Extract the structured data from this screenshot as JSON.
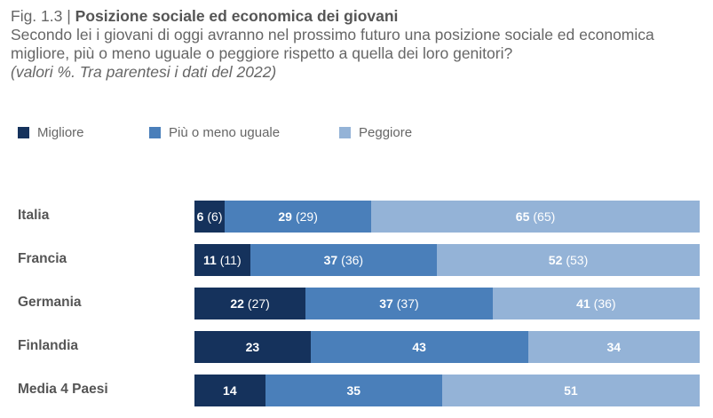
{
  "header": {
    "fig": "Fig. 1.3",
    "sep": "|",
    "title": "Posizione sociale ed economica dei giovani",
    "subtitle1": "Secondo lei i giovani di oggi avranno nel prossimo futuro una posizione sociale ed economica",
    "subtitle2": "migliore, più o meno uguale o peggiore rispetto a quella dei loro genitori?",
    "note": "(valori %. Tra parentesi i dati del 2022)"
  },
  "chart_data": {
    "type": "bar",
    "orientation": "horizontal",
    "stacked": true,
    "legend_position": "top-left",
    "grid": false,
    "xlim": [
      0,
      100
    ],
    "categories": [
      "Italia",
      "Francia",
      "Germania",
      "Finlandia",
      "Media 4 Paesi"
    ],
    "series": [
      {
        "name": "Migliore",
        "color": "#15325c",
        "values": [
          6,
          11,
          22,
          23,
          14
        ],
        "values_2022": [
          "6",
          "11",
          "27",
          null,
          null
        ]
      },
      {
        "name": "Più o meno uguale",
        "color": "#4a7fba",
        "values": [
          29,
          37,
          37,
          43,
          35
        ],
        "values_2022": [
          "29",
          "36",
          "37",
          null,
          null
        ]
      },
      {
        "name": "Peggiore",
        "color": "#94b3d7",
        "values": [
          65,
          52,
          41,
          34,
          51
        ],
        "values_2022": [
          "65",
          "53",
          "36",
          null,
          null
        ]
      }
    ]
  }
}
